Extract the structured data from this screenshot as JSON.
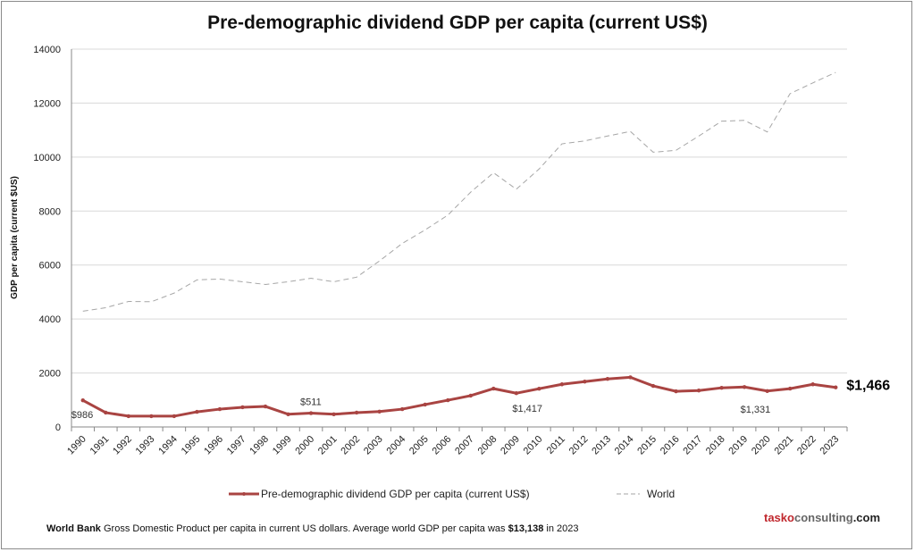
{
  "chart_data": {
    "type": "line",
    "title": "Pre-demographic dividend GDP per capita (current US$)",
    "ylabel": "GDP per capita (current $US)",
    "xlabel": "",
    "ylim": [
      0,
      14000
    ],
    "yticks": [
      0,
      2000,
      4000,
      6000,
      8000,
      10000,
      12000,
      14000
    ],
    "grid": true,
    "legend": "bottom",
    "categories": [
      "1990",
      "1991",
      "1992",
      "1993",
      "1994",
      "1995",
      "1996",
      "1997",
      "1998",
      "1999",
      "2000",
      "2001",
      "2002",
      "2003",
      "2004",
      "2005",
      "2006",
      "2007",
      "2008",
      "2009",
      "2010",
      "2011",
      "2012",
      "2013",
      "2014",
      "2015",
      "2016",
      "2017",
      "2018",
      "2019",
      "2020",
      "2021",
      "2022",
      "2023"
    ],
    "series": [
      {
        "name": "Pre-demographic dividend GDP per capita (current US$)",
        "color": "#a94442",
        "values": [
          986,
          530,
          400,
          400,
          400,
          560,
          660,
          730,
          760,
          470,
          511,
          470,
          530,
          570,
          660,
          830,
          990,
          1160,
          1420,
          1250,
          1417,
          1580,
          1680,
          1780,
          1840,
          1520,
          1320,
          1350,
          1450,
          1480,
          1331,
          1420,
          1580,
          1466
        ]
      },
      {
        "name": "World",
        "color": "#a6a6a6",
        "dashed": true,
        "values": [
          4290,
          4420,
          4650,
          4640,
          4960,
          5450,
          5480,
          5380,
          5280,
          5380,
          5510,
          5380,
          5550,
          6150,
          6800,
          7300,
          7850,
          8700,
          9420,
          8810,
          9560,
          10490,
          10600,
          10780,
          10950,
          10180,
          10250,
          10780,
          11330,
          11360,
          10930,
          12350,
          12750,
          13138
        ]
      }
    ],
    "annotations": [
      {
        "year": "1990",
        "text": "$986"
      },
      {
        "year": "2000",
        "text": "$511"
      },
      {
        "year": "2010",
        "text": "$1,417"
      },
      {
        "year": "2020",
        "text": "$1,331"
      },
      {
        "year": "2023",
        "text": "$1,466"
      }
    ]
  },
  "footer": {
    "source": "World Bank",
    "text": " Gross Domestic Product per capita in current US dollars.  Average world GDP per capita was ",
    "highlight": "$13,138",
    "tail": " in 2023"
  },
  "brand": {
    "part1": "tasko",
    "part2": "consulting",
    "part3": ".com"
  }
}
